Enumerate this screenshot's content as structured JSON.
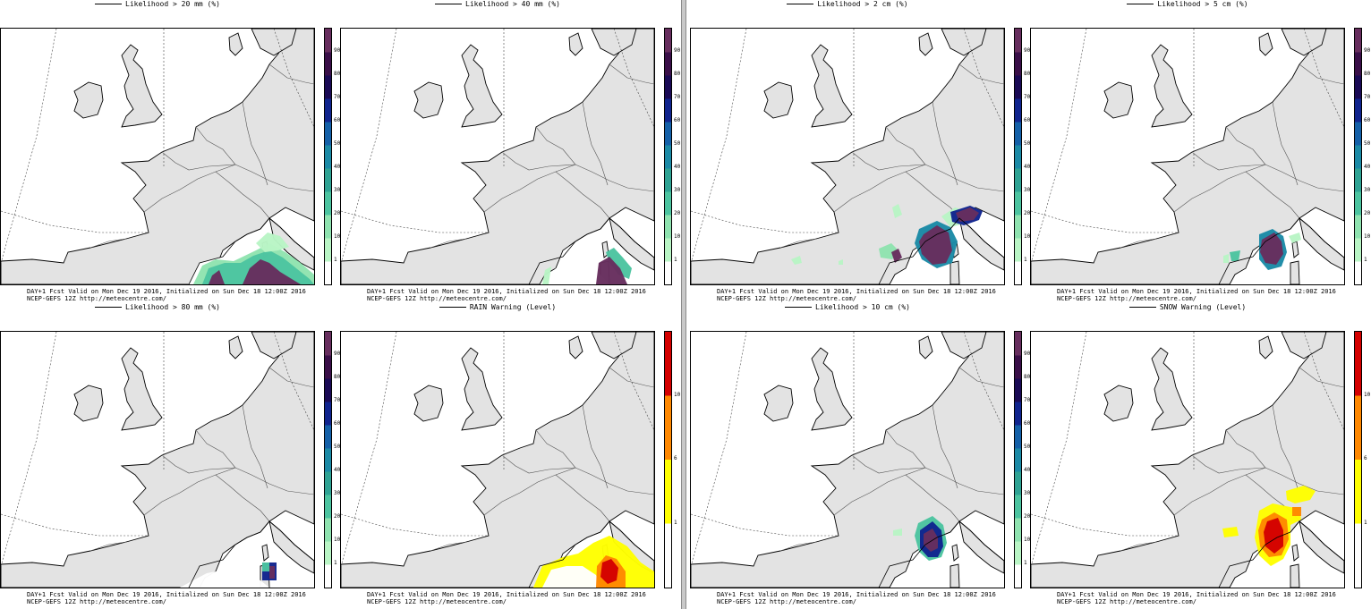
{
  "colors": {
    "land": "#e3e3e3",
    "sea": "#ffffff",
    "prob_scale": [
      "#ffffff",
      "#b9f5c5",
      "#8fe3b0",
      "#4cc4a0",
      "#2fa394",
      "#1b8aa6",
      "#1460a8",
      "#10248e",
      "#1a0a55",
      "#3a0f48",
      "#672e5e"
    ],
    "warn_scale": [
      "#ffffff",
      "#ffff00",
      "#ff8800",
      "#d40000"
    ]
  },
  "panels": [
    {
      "id": "rain-20",
      "title": "Likelihood > 20 mm (%)",
      "scale": "prob",
      "caption_1": "DAY+1 Fcst Valid on Mon Dec 19 2016, Initialized on Sun Dec 18 12:00Z 2016",
      "caption_2": "NCEP-GEFS 12Z http://meteocentre.com/"
    },
    {
      "id": "rain-40",
      "title": "Likelihood > 40 mm (%)",
      "scale": "prob",
      "caption_1": "DAY+1 Fcst Valid on Mon Dec 19 2016, Initialized on Sun Dec 18 12:00Z 2016",
      "caption_2": "NCEP-GEFS 12Z http://meteocentre.com/"
    },
    {
      "id": "snow-2",
      "title": "Likelihood > 2 cm (%)",
      "scale": "prob",
      "caption_1": "DAY+1 Fcst Valid on Mon Dec 19 2016, Initialized on Sun Dec 18 12:00Z 2016",
      "caption_2": "NCEP-GEFS 12Z http://meteocentre.com/"
    },
    {
      "id": "snow-5",
      "title": "Likelihood > 5 cm (%)",
      "scale": "prob",
      "caption_1": "DAY+1 Fcst Valid on Mon Dec 19 2016, Initialized on Sun Dec 18 12:00Z 2016",
      "caption_2": "NCEP-GEFS 12Z http://meteocentre.com/"
    },
    {
      "id": "rain-80",
      "title": "Likelihood > 80 mm (%)",
      "scale": "prob",
      "caption_1": "DAY+1 Fcst Valid on Mon Dec 19 2016, Initialized on Sun Dec 18 12:00Z 2016",
      "caption_2": "NCEP-GEFS 12Z http://meteocentre.com/"
    },
    {
      "id": "rain-warning",
      "title": "RAIN Warning (Level)",
      "scale": "warn",
      "caption_1": "DAY+1 Fcst Valid on Mon Dec 19 2016, Initialized on Sun Dec 18 12:00Z 2016",
      "caption_2": "NCEP-GEFS 12Z http://meteocentre.com/"
    },
    {
      "id": "snow-10",
      "title": "Likelihood > 10 cm (%)",
      "scale": "prob",
      "caption_1": "DAY+1 Fcst Valid on Mon Dec 19 2016, Initialized on Sun Dec 18 12:00Z 2016",
      "caption_2": "NCEP-GEFS 12Z http://meteocentre.com/"
    },
    {
      "id": "snow-warning",
      "title": "SNOW Warning (Level)",
      "scale": "warn",
      "caption_1": "DAY+1 Fcst Valid on Mon Dec 19 2016, Initialized on Sun Dec 18 12:00Z 2016",
      "caption_2": "NCEP-GEFS 12Z http://meteocentre.com/"
    }
  ],
  "prob_ticks": [
    "1",
    "10",
    "20",
    "30",
    "40",
    "50",
    "60",
    "70",
    "80",
    "90"
  ],
  "warn_ticks": [
    "1",
    "6",
    "10"
  ]
}
